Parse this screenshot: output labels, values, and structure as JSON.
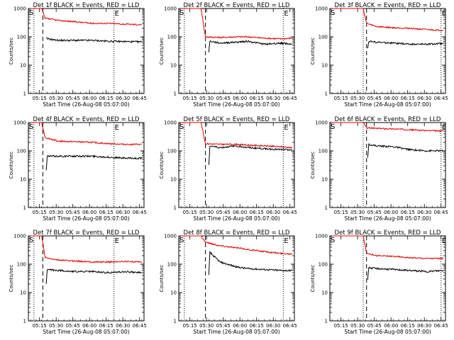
{
  "chart_data": {
    "type": "line",
    "figure_layout": "3x3 grid of detector light curves",
    "xlabel": "Start Time (26-Aug-08 05:07:00)",
    "ylabel": "Counts/sec",
    "xtick_labels": [
      "05:15",
      "05:30",
      "05:45",
      "06:00",
      "06:15",
      "06:30",
      "06:45"
    ],
    "xlim_minutes_after_start": [
      -2,
      102
    ],
    "x_ticks_minutes": [
      8,
      23,
      38,
      53,
      68,
      83,
      98
    ],
    "ylim": [
      1,
      1000
    ],
    "ytick_labels": [
      "1",
      "10",
      "100",
      "1000"
    ],
    "yscale": "log",
    "markers": {
      "start": "S",
      "end": "E"
    },
    "series_legend": {
      "black": "Events",
      "red": "LLD"
    },
    "panels": [
      {
        "detector": "1f",
        "title": "Det 1f BLACK = Events, RED = LLD",
        "lines_min": {
          "s_dotted": 3,
          "dashed": 11,
          "e_dotted": 75
        },
        "red": {
          "x": [
            0,
            10,
            13,
            25,
            40,
            55,
            70,
            85,
            100
          ],
          "y": [
            1000,
            1000,
            450,
            380,
            340,
            300,
            300,
            280,
            270
          ]
        },
        "black": {
          "x": [
            14,
            15,
            25,
            40,
            55,
            70,
            85,
            100
          ],
          "y": [
            90,
            85,
            75,
            75,
            75,
            70,
            68,
            66
          ]
        }
      },
      {
        "detector": "2f",
        "title": "Det 2f BLACK = Events, RED = LLD",
        "lines_min": {
          "s_dotted": 3,
          "dashed": 22,
          "e_dotted": 92
        },
        "red": {
          "x": [
            0,
            18,
            22,
            35,
            50,
            60,
            75,
            90,
            100
          ],
          "y": [
            1000,
            1000,
            100,
            95,
            100,
            100,
            90,
            85,
            90
          ]
        },
        "black": {
          "x": [
            25,
            26,
            35,
            50,
            60,
            75,
            90,
            100
          ],
          "y": [
            30,
            70,
            60,
            65,
            70,
            55,
            60,
            55
          ]
        }
      },
      {
        "detector": "3f",
        "title": "Det 3f BLACK = Events, RED = LLD",
        "lines_min": {
          "s_dotted": 28,
          "dashed": 31,
          "e_dotted": 98
        },
        "red": {
          "x": [
            0,
            28,
            31,
            40,
            55,
            70,
            85,
            100
          ],
          "y": [
            1000,
            1000,
            300,
            230,
            210,
            200,
            180,
            170
          ]
        },
        "black": {
          "x": [
            32,
            33,
            40,
            55,
            70,
            85,
            100
          ],
          "y": [
            40,
            70,
            65,
            60,
            55,
            55,
            58
          ]
        }
      },
      {
        "detector": "4f",
        "title": "Det 4f BLACK = Events, RED = LLD",
        "lines_min": {
          "s_dotted": 3,
          "dashed": 11,
          "e_dotted": 75
        },
        "red": {
          "x": [
            0,
            10,
            13,
            25,
            40,
            55,
            70,
            85,
            100
          ],
          "y": [
            1000,
            1000,
            300,
            220,
            210,
            200,
            180,
            170,
            170
          ]
        },
        "black": {
          "x": [
            14,
            15,
            25,
            40,
            55,
            70,
            85,
            100
          ],
          "y": [
            20,
            65,
            65,
            65,
            65,
            60,
            55,
            55
          ]
        }
      },
      {
        "detector": "5f",
        "title": "Det 5f BLACK = Events, RED = LLD",
        "lines_min": {
          "s_dotted": 3,
          "dashed": 22,
          "e_dotted": 92
        },
        "red": {
          "x": [
            0,
            18,
            22,
            35,
            50,
            60,
            75,
            90,
            100
          ],
          "y": [
            1000,
            1000,
            180,
            170,
            170,
            160,
            150,
            140,
            130
          ]
        },
        "black": {
          "x": [
            25,
            26,
            35,
            50,
            60,
            75,
            90,
            100
          ],
          "y": [
            30,
            150,
            130,
            150,
            130,
            120,
            110,
            110
          ]
        }
      },
      {
        "detector": "6f",
        "title": "Det 6f BLACK = Events, RED = LLD",
        "lines_min": {
          "s_dotted": 28,
          "dashed": 31,
          "e_dotted": 98
        },
        "red": {
          "x": [
            0,
            28,
            31,
            40,
            55,
            70,
            85,
            100
          ],
          "y": [
            1000,
            1000,
            650,
            620,
            600,
            560,
            520,
            500
          ]
        },
        "black": {
          "x": [
            32,
            33,
            40,
            55,
            70,
            85,
            100
          ],
          "y": [
            60,
            170,
            150,
            140,
            110,
            100,
            100
          ]
        }
      },
      {
        "detector": "7f",
        "title": "Det 7f BLACK = Events, RED = LLD",
        "lines_min": {
          "s_dotted": 3,
          "dashed": 11,
          "e_dotted": 75
        },
        "red": {
          "x": [
            0,
            10,
            13,
            25,
            40,
            55,
            70,
            85,
            100
          ],
          "y": [
            1000,
            1000,
            170,
            140,
            130,
            120,
            120,
            125,
            120
          ]
        },
        "black": {
          "x": [
            14,
            15,
            25,
            40,
            55,
            70,
            85,
            100
          ],
          "y": [
            20,
            65,
            60,
            55,
            55,
            50,
            55,
            50
          ]
        }
      },
      {
        "detector": "8f",
        "title": "Det 8f BLACK = Events, RED = LLD",
        "lines_min": {
          "s_dotted": 3,
          "dashed": 22,
          "e_dotted": 92
        },
        "red": {
          "x": [
            0,
            18,
            22,
            35,
            50,
            60,
            75,
            90,
            100
          ],
          "y": [
            1000,
            1000,
            600,
            450,
            380,
            330,
            280,
            240,
            230
          ]
        },
        "black": {
          "x": [
            25,
            26,
            35,
            50,
            60,
            75,
            90,
            100
          ],
          "y": [
            40,
            260,
            120,
            80,
            70,
            65,
            60,
            60
          ]
        }
      },
      {
        "detector": "9f",
        "title": "Det 9f BLACK = Events, RED = LLD",
        "lines_min": {
          "s_dotted": 28,
          "dashed": 31,
          "e_dotted": 98
        },
        "red": {
          "x": [
            0,
            28,
            31,
            40,
            55,
            70,
            85,
            100
          ],
          "y": [
            1000,
            1000,
            250,
            200,
            190,
            170,
            160,
            160
          ]
        },
        "black": {
          "x": [
            32,
            33,
            40,
            55,
            70,
            85,
            100
          ],
          "y": [
            30,
            75,
            70,
            65,
            60,
            55,
            60
          ]
        }
      }
    ]
  }
}
